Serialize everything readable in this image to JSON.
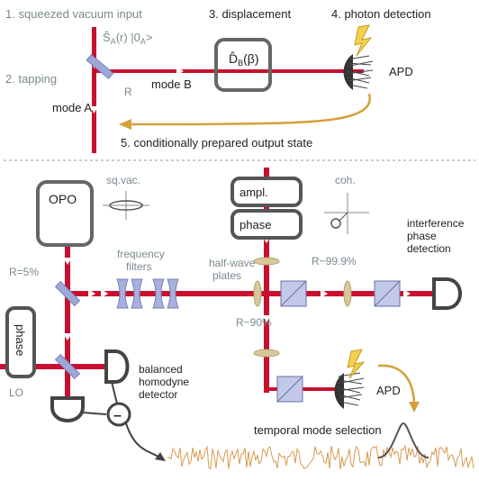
{
  "top": {
    "step1": "1. squeezed vacuum input",
    "step2": "2. tapping",
    "step3": "3. displacement",
    "step4": "4. photon detection",
    "step5": "5. conditionally prepared output state",
    "state": "Ŝ",
    "state_sub_a": "A",
    "state_mid": "(r) |0",
    "state_sub_a2": "A",
    "state_end": ">",
    "r_label": "R",
    "mode_a": "mode A",
    "mode_b": "mode B",
    "disp_op": "D̂",
    "disp_sub": "B",
    "disp_arg": "(β)",
    "apd": "APD"
  },
  "bottom": {
    "opo": "OPO",
    "sqvac": "sq.vac.",
    "ampl": "ampl.",
    "phase_box": "phase",
    "coh": "coh.",
    "interference": [
      "interference",
      "phase",
      "detection"
    ],
    "r5": "R=5%",
    "freq_filters": [
      "frequency",
      "filters"
    ],
    "half_wave": [
      "half-wave",
      "plates"
    ],
    "r999": "R~99.9%",
    "r90": "R~90%",
    "phase_lo": "phase",
    "lo": "LO",
    "balanced": [
      "balanced",
      "homodyne",
      "detector"
    ],
    "minus": "–",
    "apd": "APD",
    "temporal": "temporal mode selection"
  },
  "colors": {
    "beam": "#c8102e",
    "arrow_gold": "#d4a03a",
    "label_gray": "#7a8a8f",
    "text_dark": "#222222",
    "box_dark": "#555555",
    "optic_blue": "#9ea8d8",
    "lens_tan": "#d8c79a",
    "noise": "#d89a50"
  }
}
